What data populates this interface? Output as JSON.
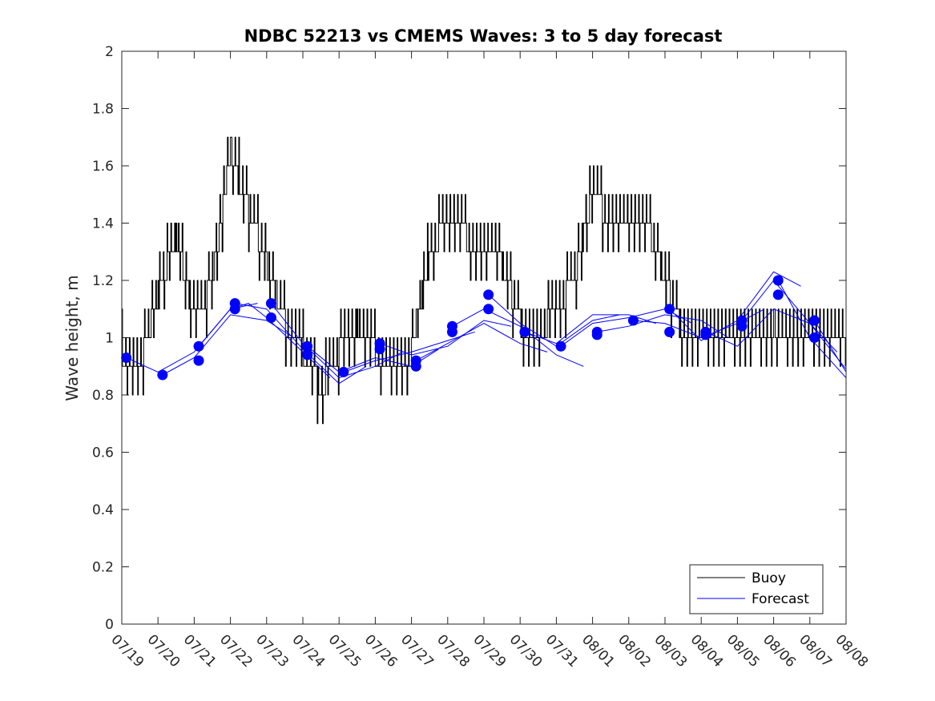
{
  "chart_data": {
    "type": "line",
    "title": "NDBC 52213 vs CMEMS Waves: 3 to 5 day forecast",
    "xlabel": "",
    "ylabel": "Wave height, m",
    "ylim": [
      0,
      2
    ],
    "yticks": [
      "0",
      "0.2",
      "0.4",
      "0.6",
      "0.8",
      "1",
      "1.2",
      "1.4",
      "1.6",
      "1.8",
      "2"
    ],
    "xticks": [
      "07/19",
      "07/20",
      "07/21",
      "07/22",
      "07/23",
      "07/24",
      "07/25",
      "07/26",
      "07/27",
      "07/28",
      "07/29",
      "07/30",
      "07/31",
      "08/01",
      "08/02",
      "08/03",
      "08/04",
      "08/05",
      "08/06",
      "08/07",
      "08/08"
    ],
    "grid": false,
    "legend_position": "bottom-right",
    "colors": {
      "buoy": "#000000",
      "forecast": "#0000ff"
    },
    "series": [
      {
        "name": "Buoy",
        "x": [
          "07/19",
          "07/19 12:00",
          "07/20",
          "07/20 12:00",
          "07/21",
          "07/21 12:00",
          "07/22",
          "07/22 12:00",
          "07/23",
          "07/23 12:00",
          "07/24",
          "07/24 12:00",
          "07/25",
          "07/25 12:00",
          "07/26",
          "07/26 12:00",
          "07/27",
          "07/27 12:00",
          "07/28",
          "07/28 12:00",
          "07/29",
          "07/29 12:00",
          "07/30",
          "07/30 12:00",
          "07/31",
          "07/31 12:00",
          "08/01",
          "08/01 12:00",
          "08/02",
          "08/02 12:00",
          "08/03",
          "08/03 12:00",
          "08/04",
          "08/04 12:00",
          "08/05",
          "08/05 12:00",
          "08/06",
          "08/06 12:00",
          "08/07",
          "08/07 12:00"
        ],
        "y": [
          0.95,
          0.9,
          1.15,
          1.35,
          1.05,
          1.2,
          1.65,
          1.45,
          1.25,
          1.05,
          0.95,
          0.82,
          0.95,
          1.05,
          0.95,
          0.85,
          0.95,
          1.3,
          1.4,
          1.35,
          1.3,
          1.25,
          1.05,
          1.0,
          1.1,
          1.2,
          1.5,
          1.4,
          1.35,
          1.4,
          1.2,
          1.0,
          0.95,
          0.95,
          0.95,
          0.95,
          1.05,
          1.0,
          0.95,
          0.95
        ]
      },
      {
        "name": "Forecast",
        "x": [
          "07/19",
          "07/20",
          "07/21",
          "07/22",
          "07/23",
          "07/24",
          "07/25",
          "07/26",
          "07/27",
          "07/28",
          "07/29",
          "07/30",
          "07/31",
          "08/01",
          "08/02",
          "08/03",
          "08/04",
          "08/05",
          "08/06",
          "08/07",
          "08/08"
        ],
        "y": [
          0.92,
          0.88,
          0.95,
          1.1,
          1.1,
          0.96,
          0.86,
          0.94,
          0.91,
          1.0,
          1.08,
          1.0,
          0.97,
          1.03,
          1.05,
          1.06,
          1.0,
          1.04,
          1.15,
          1.02,
          0.87
        ]
      }
    ],
    "forecast_runs": [
      {
        "x": [
          "07/19 03:00",
          "07/20",
          "07/21",
          "07/22",
          "07/22 18:00"
        ],
        "y": [
          0.93,
          0.88,
          0.95,
          1.1,
          1.12
        ]
      },
      {
        "x": [
          "07/20 03:00",
          "07/21",
          "07/22",
          "07/23",
          "07/23 18:00"
        ],
        "y": [
          0.87,
          0.93,
          1.08,
          1.06,
          1.0
        ]
      },
      {
        "x": [
          "07/21 03:00",
          "07/22",
          "07/22 12:00",
          "07/23",
          "07/24",
          "07/24 18:00"
        ],
        "y": [
          0.97,
          1.1,
          1.12,
          1.07,
          0.95,
          0.86
        ]
      },
      {
        "x": [
          "07/22 03:00",
          "07/23",
          "07/24",
          "07/25",
          "07/25 18:00"
        ],
        "y": [
          1.12,
          1.1,
          0.96,
          0.84,
          0.9
        ]
      },
      {
        "x": [
          "07/23 03:00",
          "07/24",
          "07/25",
          "07/26",
          "07/26 18:00"
        ],
        "y": [
          1.12,
          0.98,
          0.86,
          0.9,
          0.95
        ]
      },
      {
        "x": [
          "07/24 03:00",
          "07/25",
          "07/26",
          "07/27",
          "07/27 18:00"
        ],
        "y": [
          0.97,
          0.88,
          0.93,
          0.9,
          0.96
        ]
      },
      {
        "x": [
          "07/25 03:00",
          "07/26",
          "07/27",
          "07/28",
          "07/28 18:00"
        ],
        "y": [
          0.88,
          0.92,
          0.95,
          0.99,
          1.02
        ]
      },
      {
        "x": [
          "07/26 03:00",
          "07/27",
          "07/28",
          "07/29",
          "07/29 18:00"
        ],
        "y": [
          0.98,
          0.94,
          0.97,
          1.06,
          1.04
        ]
      },
      {
        "x": [
          "07/27 03:00",
          "07/28",
          "07/29",
          "07/30",
          "07/30 18:00"
        ],
        "y": [
          0.92,
          0.98,
          1.05,
          0.98,
          0.95
        ]
      },
      {
        "x": [
          "07/28 03:00",
          "07/29",
          "07/30",
          "07/31",
          "07/31 18:00"
        ],
        "y": [
          1.04,
          1.1,
          1.04,
          0.94,
          0.9
        ]
      },
      {
        "x": [
          "07/29 03:00",
          "07/30",
          "07/31",
          "08/01",
          "08/01 18:00"
        ],
        "y": [
          1.15,
          1.05,
          0.97,
          1.06,
          1.08
        ]
      },
      {
        "x": [
          "07/30 03:00",
          "07/31",
          "08/01",
          "08/02",
          "08/02 18:00"
        ],
        "y": [
          1.02,
          0.98,
          1.08,
          1.08,
          1.05
        ]
      },
      {
        "x": [
          "07/31 03:00",
          "08/01",
          "08/02",
          "08/03",
          "08/03 18:00"
        ],
        "y": [
          0.97,
          1.05,
          1.07,
          1.1,
          1.05
        ]
      },
      {
        "x": [
          "08/01 03:00",
          "08/02",
          "08/03",
          "08/04",
          "08/04 18:00"
        ],
        "y": [
          1.02,
          1.04,
          1.08,
          1.06,
          1.0
        ]
      },
      {
        "x": [
          "08/02 03:00",
          "08/03",
          "08/04",
          "08/05",
          "08/05 18:00"
        ],
        "y": [
          1.06,
          1.05,
          1.0,
          1.05,
          1.1
        ]
      },
      {
        "x": [
          "08/03 03:00",
          "08/04",
          "08/05",
          "08/06",
          "08/06 18:00"
        ],
        "y": [
          1.1,
          0.99,
          1.06,
          1.23,
          1.18
        ]
      },
      {
        "x": [
          "08/04 03:00",
          "08/05",
          "08/06",
          "08/07",
          "08/07 18:00"
        ],
        "y": [
          1.02,
          0.97,
          1.1,
          1.05,
          0.95
        ]
      },
      {
        "x": [
          "08/05 03:00",
          "08/06",
          "08/07",
          "08/08"
        ],
        "y": [
          1.06,
          1.2,
          1.05,
          0.89
        ]
      },
      {
        "x": [
          "08/06 03:00",
          "08/07",
          "08/08"
        ],
        "y": [
          1.2,
          1.0,
          0.86
        ]
      },
      {
        "x": [
          "08/07 03:00",
          "08/08"
        ],
        "y": [
          1.06,
          0.88
        ]
      }
    ],
    "forecast_markers": {
      "x": [
        "07/19 03:00",
        "07/20 03:00",
        "07/21 03:00",
        "07/21 03:00",
        "07/22 03:00",
        "07/22 03:00",
        "07/23 03:00",
        "07/23 03:00",
        "07/24 03:00",
        "07/24 03:00",
        "07/25 03:00",
        "07/26 03:00",
        "07/26 03:00",
        "07/27 03:00",
        "07/27 03:00",
        "07/28 03:00",
        "07/28 03:00",
        "07/29 03:00",
        "07/29 03:00",
        "07/30 03:00",
        "07/31 03:00",
        "08/01 03:00",
        "08/01 03:00",
        "08/02 03:00",
        "08/03 03:00",
        "08/03 03:00",
        "08/04 03:00",
        "08/04 03:00",
        "08/05 03:00",
        "08/05 03:00",
        "08/06 03:00",
        "08/06 03:00",
        "08/07 03:00",
        "08/07 03:00"
      ],
      "y": [
        0.93,
        0.87,
        0.97,
        0.92,
        1.12,
        1.1,
        1.12,
        1.07,
        0.97,
        0.94,
        0.88,
        0.98,
        0.96,
        0.92,
        0.9,
        1.04,
        1.02,
        1.15,
        1.1,
        1.02,
        0.97,
        1.02,
        1.01,
        1.06,
        1.1,
        1.02,
        1.02,
        1.01,
        1.06,
        1.04,
        1.2,
        1.15,
        1.06,
        1.0
      ]
    }
  }
}
